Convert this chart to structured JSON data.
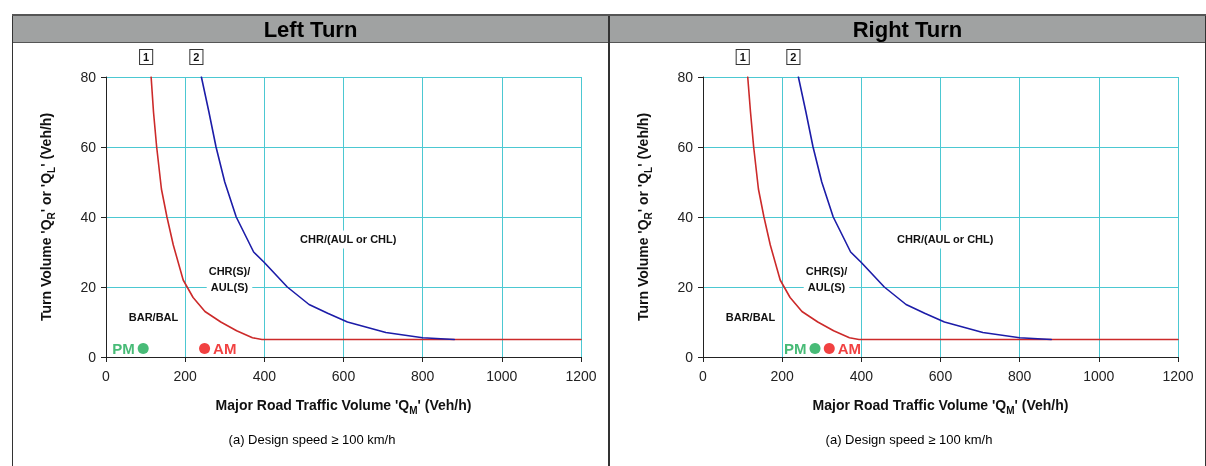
{
  "chart_data": [
    {
      "type": "line",
      "title": "Left Turn",
      "xlabel": "Major Road Traffic Volume 'Q$_{M}$' (Veh/h)",
      "ylabel": "Turn Volume 'Q$_{R}$' or 'Q$_{L}$' (Veh/h)",
      "xlim": [
        0,
        1200
      ],
      "xticks": [
        0,
        200,
        400,
        600,
        800,
        1000,
        1200
      ],
      "ylim": [
        0,
        80
      ],
      "yticks": [
        0,
        20,
        40,
        60,
        80
      ],
      "grid": true,
      "legend": false,
      "marker": "none",
      "series": [
        {
          "name": "1",
          "color": "#cc2a2a",
          "x": [
            114,
            120,
            128,
            140,
            154,
            170,
            195,
            220,
            250,
            290,
            330,
            370,
            394,
            1200
          ],
          "values": [
            80,
            70,
            60,
            48,
            40,
            32,
            22,
            17,
            13,
            10,
            7.5,
            5.5,
            5,
            5
          ]
        },
        {
          "name": "2",
          "color": "#1c1ca8",
          "x": [
            241,
            260,
            278,
            300,
            329,
            373,
            400,
            458,
            513,
            560,
            610,
            707,
            800,
            880
          ],
          "values": [
            80,
            70,
            60,
            50,
            40,
            30,
            27,
            20,
            15,
            12.5,
            10,
            7,
            5.5,
            5
          ]
        },
        {
          "name": "PM",
          "type": "scatter",
          "marker": "circle",
          "color": "#1aaa55",
          "x": [
            94
          ],
          "values": [
            2.4
          ]
        },
        {
          "name": "AM",
          "type": "scatter",
          "marker": "circle",
          "color": "#ee1111",
          "x": [
            249
          ],
          "values": [
            2.4
          ]
        }
      ],
      "annotations": [
        "CHR/(AUL or CHL)",
        "CHR(S)/\nAUL(S)",
        "BAR/BAL",
        "(a)  Design speed ≥ 100 km/h"
      ]
    },
    {
      "type": "line",
      "title": "Right Turn",
      "xlabel": "Major Road Traffic Volume 'Q$_{M}$' (Veh/h)",
      "ylabel": "Turn Volume 'Q$_{R}$' or 'Q$_{L}$' (Veh/h)",
      "xlim": [
        0,
        1200
      ],
      "xticks": [
        0,
        200,
        400,
        600,
        800,
        1000,
        1200
      ],
      "ylim": [
        0,
        80
      ],
      "yticks": [
        0,
        20,
        40,
        60,
        80
      ],
      "grid": true,
      "legend": false,
      "marker": "none",
      "series": [
        {
          "name": "1",
          "color": "#cc2a2a",
          "x": [
            113,
            120,
            128,
            140,
            154,
            170,
            195,
            220,
            250,
            290,
            330,
            370,
            394,
            1200
          ],
          "values": [
            80,
            70,
            60,
            48,
            40,
            32,
            22,
            17,
            13,
            10,
            7.5,
            5.5,
            5,
            5
          ]
        },
        {
          "name": "2",
          "color": "#1c1ca8",
          "x": [
            241,
            260,
            278,
            300,
            329,
            373,
            400,
            458,
            513,
            560,
            610,
            707,
            800,
            880
          ],
          "values": [
            80,
            70,
            60,
            50,
            40,
            30,
            27,
            20,
            15,
            12.5,
            10,
            7,
            5.5,
            5
          ]
        },
        {
          "name": "PM",
          "type": "scatter",
          "marker": "circle",
          "color": "#1aaa55",
          "x": [
            283
          ],
          "values": [
            2.4
          ]
        },
        {
          "name": "AM",
          "type": "scatter",
          "marker": "circle",
          "color": "#ee1111",
          "x": [
            319
          ],
          "values": [
            2.4
          ]
        }
      ],
      "annotations": [
        "CHR/(AUL or CHL)",
        "CHR(S)/\nAUL(S)",
        "BAR/BAL",
        "(a)  Design speed ≥ 100 km/h"
      ]
    }
  ]
}
